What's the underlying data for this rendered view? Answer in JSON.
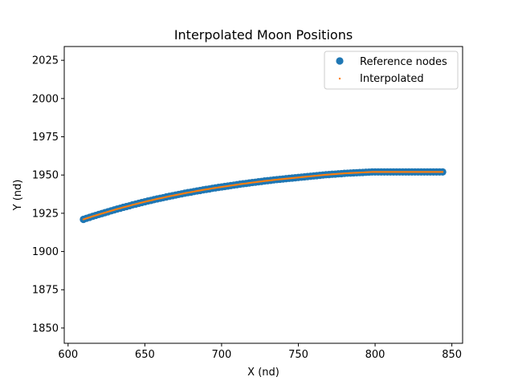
{
  "chart_data": {
    "type": "scatter",
    "title": "Interpolated Moon Positions",
    "xlabel": "X (nd)",
    "ylabel": "Y (nd)",
    "xlim": [
      597.5,
      857
    ],
    "ylim": [
      1840,
      2034
    ],
    "xticks": [
      600,
      650,
      700,
      750,
      800,
      850
    ],
    "yticks": [
      1850,
      1875,
      1900,
      1925,
      1950,
      1975,
      2000,
      2025
    ],
    "grid": false,
    "legend_placement": "top-right",
    "series": [
      {
        "name": "Reference nodes",
        "marker": "circle-large",
        "color": "#1f77b4",
        "x": [
          610,
          612,
          614,
          616,
          618,
          620,
          622,
          624,
          626,
          628,
          630,
          632,
          634,
          636,
          638,
          640,
          642,
          644,
          646,
          648,
          650,
          652,
          654,
          656,
          658,
          660,
          662,
          664,
          666,
          668,
          670,
          672,
          674,
          676,
          678,
          680,
          682,
          684,
          686,
          688,
          690,
          692,
          694,
          696,
          698,
          700,
          702,
          704,
          706,
          708,
          710,
          712,
          714,
          716,
          718,
          720,
          722,
          724,
          726,
          728,
          730,
          732,
          734,
          736,
          738,
          740,
          742,
          744,
          746,
          748,
          750,
          752,
          754,
          756,
          758,
          760,
          762,
          764,
          766,
          768,
          770,
          772,
          774,
          776,
          778,
          780,
          782,
          784,
          786,
          788,
          790,
          792,
          794,
          796,
          798,
          800,
          802,
          804,
          806,
          808,
          810,
          812,
          814,
          816,
          818,
          820,
          822,
          824,
          826,
          828,
          830,
          832,
          834,
          836,
          838,
          840,
          842,
          844
        ],
        "y": [
          1921,
          1921.7,
          1922.3,
          1923,
          1923.6,
          1924.2,
          1924.8,
          1925.4,
          1926,
          1926.6,
          1927.2,
          1927.8,
          1928.3,
          1928.9,
          1929.4,
          1929.9,
          1930.5,
          1931,
          1931.5,
          1932,
          1932.5,
          1933,
          1933.4,
          1933.9,
          1934.4,
          1934.8,
          1935.2,
          1935.7,
          1936.1,
          1936.5,
          1936.9,
          1937.3,
          1937.7,
          1938.1,
          1938.5,
          1938.8,
          1939.2,
          1939.6,
          1939.9,
          1940.3,
          1940.6,
          1940.9,
          1941.3,
          1941.6,
          1941.9,
          1942.2,
          1942.5,
          1942.8,
          1943.1,
          1943.4,
          1943.7,
          1944,
          1944.3,
          1944.5,
          1944.8,
          1945.1,
          1945.3,
          1945.6,
          1945.8,
          1946.1,
          1946.3,
          1946.5,
          1946.8,
          1947,
          1947.2,
          1947.4,
          1947.6,
          1947.8,
          1948,
          1948.2,
          1948.4,
          1948.6,
          1948.8,
          1949,
          1949.2,
          1949.4,
          1949.6,
          1949.8,
          1950,
          1950.2,
          1950.3,
          1950.5,
          1950.6,
          1950.8,
          1950.9,
          1951.1,
          1951.2,
          1951.3,
          1951.4,
          1951.5,
          1951.6,
          1951.7,
          1951.8,
          1951.9,
          1952,
          1952,
          1952,
          1952,
          1952,
          1952,
          1952,
          1952,
          1952,
          1952,
          1952,
          1952,
          1952,
          1952,
          1952,
          1952,
          1952,
          1952,
          1952,
          1952,
          1952,
          1952,
          1952,
          1952
        ]
      },
      {
        "name": "Interpolated",
        "marker": "dot-small",
        "color": "#ff7f0e",
        "x_range": [
          610,
          844
        ],
        "y_note_source": "same curve as reference nodes"
      }
    ]
  }
}
